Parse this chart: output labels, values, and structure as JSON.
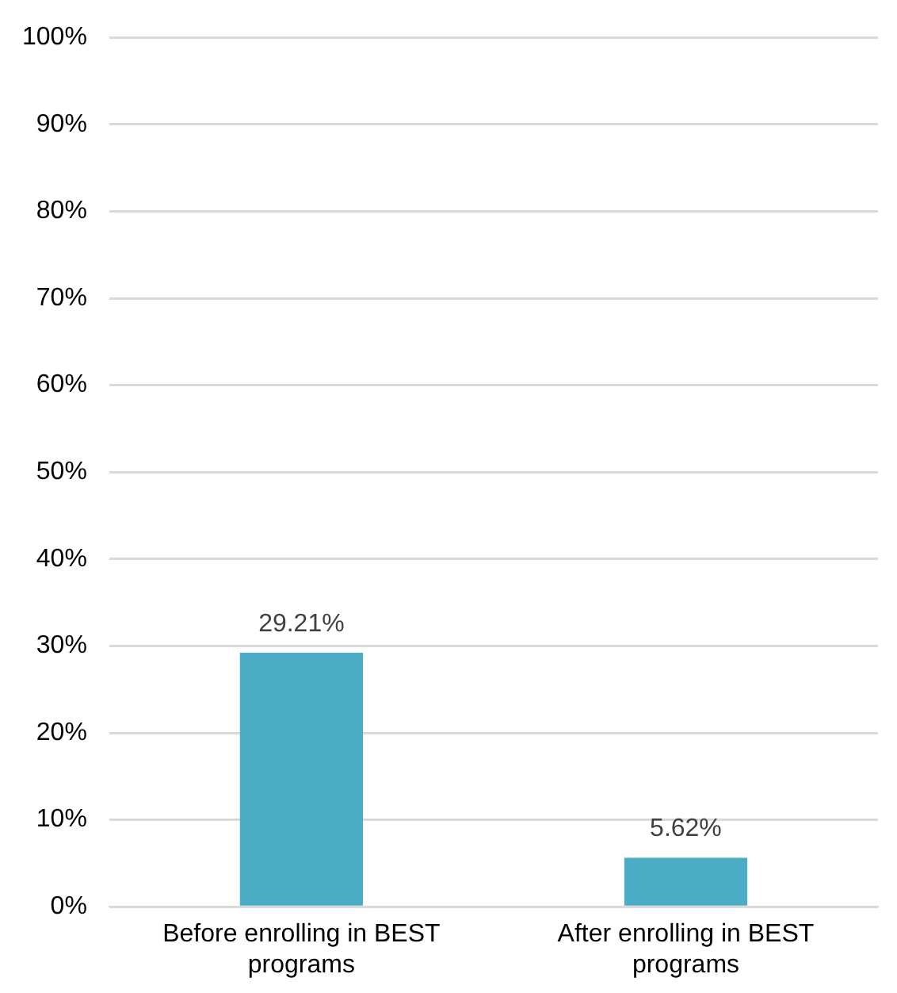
{
  "chart_data": {
    "type": "bar",
    "categories": [
      "Before enrolling in BEST programs",
      "After enrolling in BEST programs"
    ],
    "values": [
      29.21,
      5.62
    ],
    "value_labels": [
      "29.21%",
      "5.62%"
    ],
    "color": "#4bacc6",
    "ylim": [
      0,
      100
    ],
    "yticks": [
      {
        "value": 0,
        "label": "0%"
      },
      {
        "value": 10,
        "label": "10%"
      },
      {
        "value": 20,
        "label": "20%"
      },
      {
        "value": 30,
        "label": "30%"
      },
      {
        "value": 40,
        "label": "40%"
      },
      {
        "value": 50,
        "label": "50%"
      },
      {
        "value": 60,
        "label": "60%"
      },
      {
        "value": 70,
        "label": "70%"
      },
      {
        "value": 80,
        "label": "80%"
      },
      {
        "value": 90,
        "label": "90%"
      },
      {
        "value": 100,
        "label": "100%"
      }
    ],
    "grid": "y"
  }
}
